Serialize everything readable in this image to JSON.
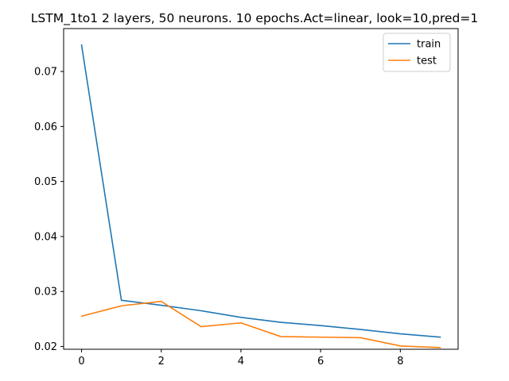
{
  "chart_data": {
    "type": "line",
    "title": "LSTM_1to1 2 layers, 50 neurons. 10 epochs.Act=linear, look=10,pred=1",
    "xlabel": "",
    "ylabel": "",
    "x": [
      0,
      1,
      2,
      3,
      4,
      5,
      6,
      7,
      8,
      9
    ],
    "xlim": [
      -0.45,
      9.45
    ],
    "ylim": [
      0.0195,
      0.0778
    ],
    "xticks": [
      0,
      2,
      4,
      6,
      8
    ],
    "xtick_labels": [
      "0",
      "2",
      "4",
      "6",
      "8"
    ],
    "yticks": [
      0.02,
      0.03,
      0.04,
      0.05,
      0.06,
      0.07
    ],
    "ytick_labels": [
      "0.02",
      "0.03",
      "0.04",
      "0.05",
      "0.06",
      "0.07"
    ],
    "grid": false,
    "legend_position": "top-right",
    "series": [
      {
        "name": "train",
        "color": "#1f77b4",
        "values": [
          0.0748,
          0.0284,
          0.0275,
          0.0265,
          0.0253,
          0.0244,
          0.0238,
          0.0231,
          0.0223,
          0.0217
        ]
      },
      {
        "name": "test",
        "color": "#ff7f0e",
        "values": [
          0.0255,
          0.0274,
          0.0282,
          0.0236,
          0.0243,
          0.0218,
          0.0217,
          0.0216,
          0.0201,
          0.0198
        ]
      }
    ]
  }
}
